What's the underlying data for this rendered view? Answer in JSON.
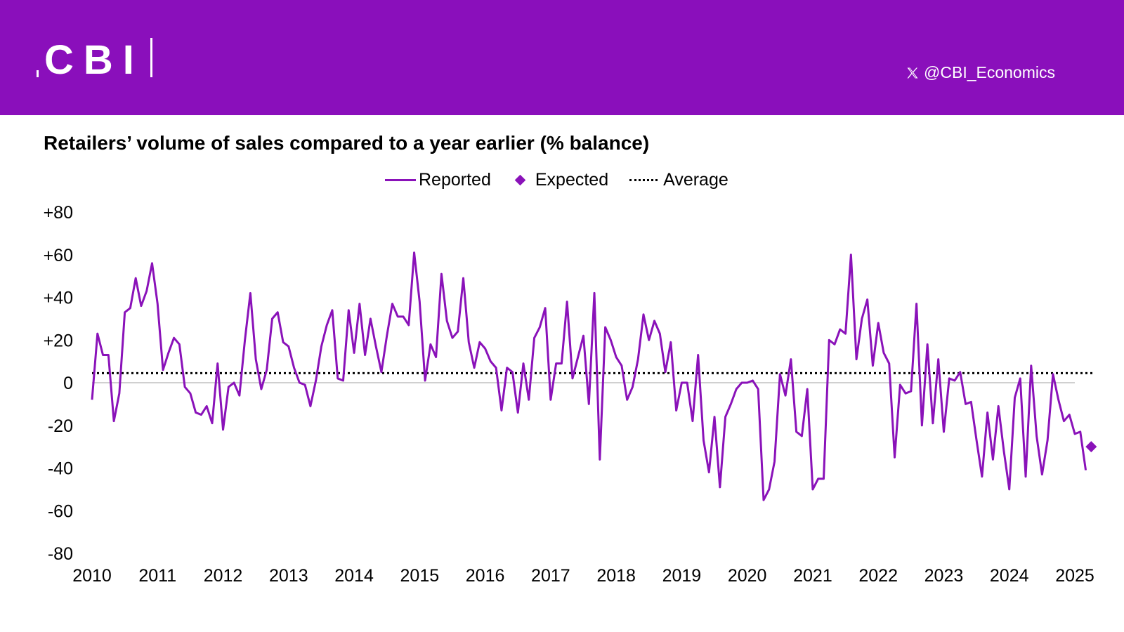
{
  "header": {
    "logo_text": "CBI",
    "social_icon": "x-logo-icon",
    "social_handle": "@CBI_Economics",
    "banner_color": "#8a0fbb"
  },
  "chart_data": {
    "type": "line",
    "title": "Retailers’ volume of sales compared to a year earlier (% balance)",
    "xlabel": "",
    "ylabel": "",
    "ylim": [
      -80,
      80
    ],
    "yticks": [
      80,
      60,
      40,
      20,
      0,
      -20,
      -40,
      -60,
      -80
    ],
    "ytick_labels": [
      "+80",
      "+60",
      "+40",
      "+20",
      "0",
      "-20",
      "-40",
      "-60",
      "-80"
    ],
    "xticks": [
      "2010",
      "2011",
      "2012",
      "2013",
      "2014",
      "2015",
      "2016",
      "2017",
      "2018",
      "2019",
      "2020",
      "2021",
      "2022",
      "2023",
      "2024",
      "2025"
    ],
    "legend": [
      "Reported",
      "Expected",
      "Average"
    ],
    "legend_position": "top",
    "colors": {
      "reported": "#8a12b9",
      "expected": "#8a12b9",
      "average": "#000000",
      "zero_line": "#c0c0c0"
    },
    "series": [
      {
        "name": "Reported",
        "start": "2010-01",
        "frequency": "monthly",
        "values": [
          -8,
          23,
          13,
          13,
          -18,
          -5,
          33,
          35,
          49,
          36,
          43,
          56,
          37,
          6,
          14,
          21,
          18,
          -2,
          -5,
          -14,
          -15,
          -11,
          -19,
          9,
          -22,
          -2,
          0,
          -6,
          20,
          42,
          11,
          -3,
          6,
          30,
          33,
          19,
          17,
          7,
          0,
          -1,
          -11,
          1,
          17,
          27,
          34,
          2,
          1,
          34,
          14,
          37,
          13,
          30,
          17,
          5,
          22,
          37,
          31,
          31,
          27,
          61,
          38,
          1,
          18,
          12,
          51,
          29,
          21,
          24,
          49,
          19,
          7,
          19,
          16,
          10,
          7,
          -13,
          7,
          5,
          -14,
          9,
          -8,
          21,
          26,
          35,
          -8,
          9,
          9,
          38,
          2,
          12,
          22,
          -10,
          42,
          -36,
          26,
          20,
          12,
          8,
          -8,
          -2,
          11,
          32,
          20,
          29,
          23,
          5,
          19,
          -13,
          0,
          0,
          -18,
          13,
          -27,
          -42,
          -16,
          -49,
          -16,
          -10,
          -3,
          0,
          0,
          1,
          -3,
          -55,
          -50,
          -37,
          4,
          -6,
          11,
          -23,
          -25,
          -3,
          -50,
          -45,
          -45,
          20,
          18,
          25,
          23,
          60,
          11,
          30,
          39,
          8,
          28,
          14,
          9,
          -35,
          -1,
          -5,
          -4,
          37,
          -20,
          18,
          -19,
          11,
          -23,
          2,
          1,
          5,
          -10,
          -9,
          -27,
          -44,
          -14,
          -36,
          -11,
          -32,
          -50,
          -7,
          2,
          -44,
          8,
          -25,
          -43,
          -27,
          4,
          -8,
          -18,
          -15,
          -24,
          -23,
          -41
        ]
      },
      {
        "name": "Expected",
        "x": "2025-04",
        "value": -30
      },
      {
        "name": "Average",
        "value": 4.5
      }
    ]
  }
}
